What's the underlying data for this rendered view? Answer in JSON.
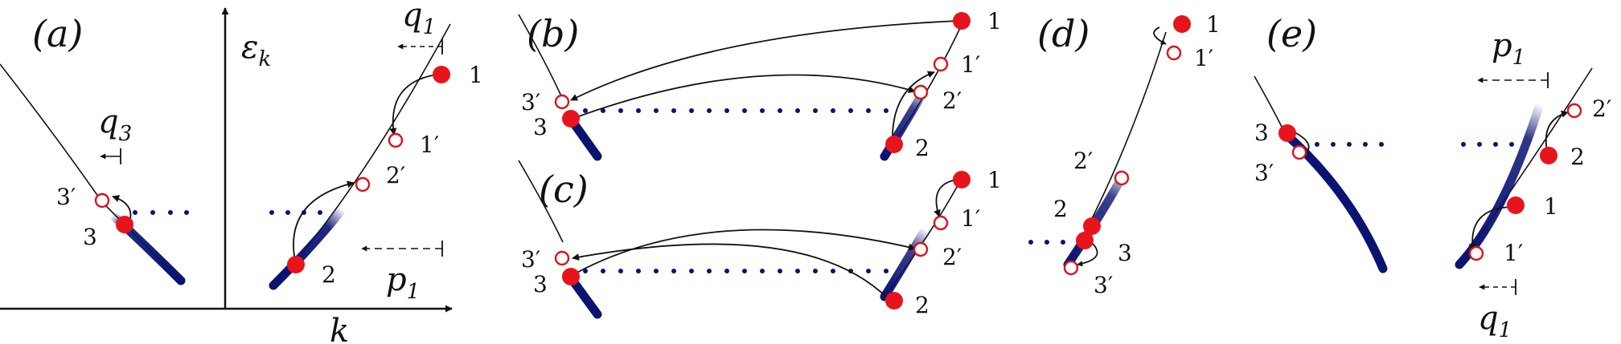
{
  "colors": {
    "band": "#0a1470",
    "filled": "#e8141c",
    "hollow_edge": "#d8141c",
    "line": "#111111",
    "dots": "#0a1470"
  },
  "panels": [
    {
      "label": "(a)",
      "axes": {
        "x": "k",
        "y": "εk"
      },
      "momenta": [
        "q1",
        "q3",
        "p1"
      ],
      "points": [
        "1",
        "1′",
        "2",
        "2′",
        "3",
        "3′"
      ]
    },
    {
      "label": "(b)",
      "points": [
        "1",
        "1′",
        "2",
        "2′",
        "3",
        "3′"
      ]
    },
    {
      "label": "(c)",
      "points": [
        "1",
        "1′",
        "2",
        "2′",
        "3",
        "3′"
      ]
    },
    {
      "label": "(d)",
      "points": [
        "1",
        "1′",
        "2",
        "2′",
        "3",
        "3′"
      ]
    },
    {
      "label": "(e)",
      "momenta": [
        "p1",
        "q1"
      ],
      "points": [
        "1",
        "1′",
        "2",
        "2′",
        "3",
        "3′"
      ]
    }
  ],
  "labels": {
    "a": "(a)",
    "b": "(b)",
    "c": "(c)",
    "d": "(d)",
    "e": "(e)",
    "eps": "ε",
    "eps_sub": "k",
    "k": "k",
    "q": "q",
    "p": "p",
    "s1": "1",
    "s3": "3",
    "n1": "1",
    "n1p": "1′",
    "n2": "2",
    "n2p": "2′",
    "n3": "3",
    "n3p": "3′"
  }
}
